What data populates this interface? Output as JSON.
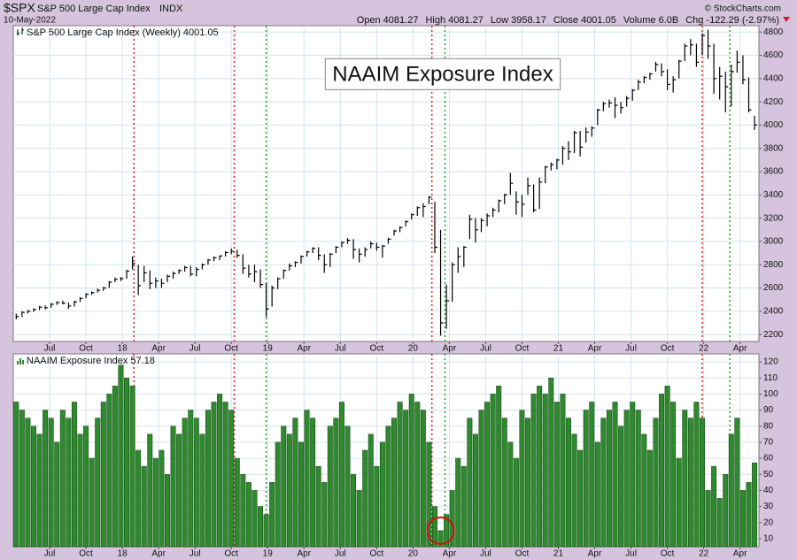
{
  "header": {
    "symbol": "$SPX",
    "name": "S&P 500 Large Cap Index",
    "exchange": "INDX",
    "date": "10-May-2022",
    "quote": [
      "Open 4081.27",
      "High 4081.27",
      "Low 3958.17",
      "Close 4001.05",
      "Volume 6.0B",
      "Chg -122.29 (-2.97%)"
    ],
    "credit": "© StockCharts.com"
  },
  "chart_data": [
    {
      "type": "ohlc",
      "title": "NAAIM Exposure Index",
      "legend": "S&P 500 Large Cap Index (Weekly) 4001.05",
      "color": "#000000",
      "x": [
        17.27,
        17.31,
        17.35,
        17.39,
        17.43,
        17.47,
        17.51,
        17.55,
        17.59,
        17.63,
        17.67,
        17.71,
        17.75,
        17.79,
        17.83,
        17.87,
        17.91,
        17.95,
        17.99,
        18.03,
        18.07,
        18.11,
        18.15,
        18.19,
        18.23,
        18.27,
        18.31,
        18.35,
        18.39,
        18.43,
        18.47,
        18.51,
        18.55,
        18.59,
        18.63,
        18.67,
        18.71,
        18.75,
        18.79,
        18.83,
        18.87,
        18.91,
        18.95,
        18.99,
        19.03,
        19.07,
        19.11,
        19.15,
        19.19,
        19.23,
        19.27,
        19.31,
        19.35,
        19.39,
        19.43,
        19.47,
        19.51,
        19.55,
        19.59,
        19.63,
        19.67,
        19.71,
        19.75,
        19.79,
        19.83,
        19.87,
        19.91,
        19.95,
        19.99,
        20.03,
        20.07,
        20.11,
        20.15,
        20.19,
        20.23,
        20.27,
        20.31,
        20.35,
        20.39,
        20.43,
        20.47,
        20.51,
        20.55,
        20.59,
        20.63,
        20.67,
        20.71,
        20.75,
        20.79,
        20.83,
        20.87,
        20.91,
        20.95,
        20.99,
        21.03,
        21.07,
        21.11,
        21.15,
        21.19,
        21.23,
        21.27,
        21.31,
        21.35,
        21.39,
        21.43,
        21.47,
        21.51,
        21.55,
        21.59,
        21.63,
        21.67,
        21.71,
        21.75,
        21.79,
        21.83,
        21.87,
        21.91,
        21.95,
        21.99,
        22.03,
        22.07,
        22.11,
        22.15,
        22.19,
        22.23,
        22.27,
        22.31,
        22.35
      ],
      "high": [
        2380,
        2400,
        2410,
        2425,
        2445,
        2450,
        2470,
        2485,
        2490,
        2475,
        2490,
        2520,
        2555,
        2570,
        2595,
        2610,
        2660,
        2690,
        2695,
        2755,
        2870,
        2800,
        2790,
        2750,
        2690,
        2680,
        2715,
        2740,
        2760,
        2790,
        2790,
        2780,
        2810,
        2850,
        2870,
        2880,
        2915,
        2940,
        2930,
        2890,
        2800,
        2800,
        2760,
        2640,
        2620,
        2690,
        2760,
        2810,
        2830,
        2880,
        2920,
        2950,
        2950,
        2890,
        2900,
        2960,
        3000,
        3030,
        3020,
        2940,
        2950,
        3000,
        2990,
        2970,
        3030,
        3100,
        3130,
        3180,
        3240,
        3300,
        3330,
        3390,
        3340,
        3100,
        2630,
        2820,
        2950,
        2960,
        3230,
        3200,
        3200,
        3240,
        3290,
        3360,
        3410,
        3590,
        3430,
        3400,
        3550,
        3490,
        3550,
        3650,
        3680,
        3710,
        3820,
        3860,
        3950,
        3950,
        3980,
        3990,
        4140,
        4200,
        4220,
        4240,
        4200,
        4250,
        4310,
        4390,
        4420,
        4450,
        4545,
        4530,
        4480,
        4420,
        4560,
        4700,
        4740,
        4700,
        4790,
        4820,
        4700,
        4500,
        4460,
        4520,
        4640,
        4600,
        4410,
        4081.27
      ],
      "low": [
        2330,
        2350,
        2380,
        2395,
        2410,
        2415,
        2430,
        2455,
        2460,
        2420,
        2440,
        2480,
        2510,
        2540,
        2560,
        2575,
        2600,
        2650,
        2660,
        2680,
        2760,
        2540,
        2650,
        2590,
        2600,
        2600,
        2650,
        2680,
        2720,
        2740,
        2700,
        2700,
        2760,
        2800,
        2830,
        2840,
        2870,
        2890,
        2860,
        2720,
        2690,
        2650,
        2600,
        2350,
        2440,
        2590,
        2680,
        2750,
        2780,
        2810,
        2870,
        2900,
        2840,
        2730,
        2780,
        2900,
        2950,
        2980,
        2850,
        2820,
        2870,
        2940,
        2920,
        2860,
        2980,
        3050,
        3080,
        3130,
        3190,
        3220,
        3210,
        3320,
        2900,
        2190,
        2250,
        2480,
        2730,
        2780,
        3020,
        2990,
        3080,
        3130,
        3210,
        3250,
        3320,
        3400,
        3230,
        3210,
        3400,
        3250,
        3280,
        3500,
        3610,
        3620,
        3660,
        3700,
        3760,
        3730,
        3850,
        3900,
        4000,
        4120,
        4150,
        4060,
        4100,
        4160,
        4210,
        4300,
        4360,
        4390,
        4460,
        4420,
        4300,
        4280,
        4400,
        4550,
        4600,
        4500,
        4600,
        4570,
        4270,
        4220,
        4110,
        4160,
        4450,
        4350,
        4110,
        3958.17
      ],
      "values": [
        2355,
        2390,
        2400,
        2415,
        2435,
        2430,
        2460,
        2475,
        2470,
        2445,
        2480,
        2510,
        2545,
        2560,
        2580,
        2600,
        2650,
        2675,
        2680,
        2745,
        2810,
        2620,
        2730,
        2640,
        2660,
        2640,
        2700,
        2725,
        2750,
        2775,
        2720,
        2760,
        2800,
        2840,
        2860,
        2875,
        2905,
        2915,
        2880,
        2770,
        2720,
        2740,
        2630,
        2420,
        2600,
        2680,
        2750,
        2790,
        2820,
        2870,
        2910,
        2940,
        2880,
        2800,
        2890,
        2950,
        2990,
        3010,
        2930,
        2890,
        2930,
        2980,
        2950,
        2960,
        3020,
        3090,
        3120,
        3170,
        3230,
        3290,
        3300,
        3380,
        2950,
        2300,
        2490,
        2800,
        2870,
        2950,
        3190,
        3100,
        3180,
        3220,
        3270,
        3350,
        3400,
        3500,
        3340,
        3320,
        3480,
        3270,
        3510,
        3640,
        3660,
        3700,
        3800,
        3770,
        3935,
        3810,
        3940,
        3975,
        4130,
        4185,
        4190,
        4170,
        4150,
        4230,
        4300,
        4370,
        4410,
        4440,
        4520,
        4460,
        4350,
        4390,
        4550,
        4680,
        4690,
        4540,
        4770,
        4680,
        4400,
        4420,
        4330,
        4460,
        4540,
        4390,
        4130,
        4001.05
      ],
      "xlim": [
        17.25,
        22.38
      ],
      "ylim": [
        2140,
        4855
      ],
      "yticks": [
        2200,
        2400,
        2600,
        2800,
        3000,
        3200,
        3400,
        3600,
        3800,
        4000,
        4200,
        4400,
        4600,
        4800
      ],
      "xticks": [
        {
          "value": 17.5,
          "label": "Jul"
        },
        {
          "value": 17.75,
          "label": "Oct"
        },
        18,
        {
          "value": 18.25,
          "label": "Apr"
        },
        {
          "value": 18.5,
          "label": "Jul"
        },
        {
          "value": 18.75,
          "label": "Oct"
        },
        19,
        {
          "value": 19.25,
          "label": "Apr"
        },
        {
          "value": 19.5,
          "label": "Jul"
        },
        {
          "value": 19.75,
          "label": "Oct"
        },
        20,
        {
          "value": 20.25,
          "label": "Apr"
        },
        {
          "value": 20.5,
          "label": "Jul"
        },
        {
          "value": 20.75,
          "label": "Oct"
        },
        21,
        {
          "value": 21.25,
          "label": "Apr"
        },
        {
          "value": 21.5,
          "label": "Jul"
        },
        {
          "value": 21.75,
          "label": "Oct"
        },
        22,
        {
          "value": 22.25,
          "label": "Apr"
        }
      ],
      "grid": true,
      "vlines": [
        {
          "x": 18.08,
          "color": "#e02020"
        },
        {
          "x": 18.77,
          "color": "#e02020"
        },
        {
          "x": 20.13,
          "color": "#e02020"
        },
        {
          "x": 21.99,
          "color": "#e02020"
        },
        {
          "x": 18.99,
          "color": "#2a9a2a"
        },
        {
          "x": 20.22,
          "color": "#2a9a2a"
        },
        {
          "x": 22.18,
          "color": "#2a9a2a"
        }
      ]
    },
    {
      "type": "bar",
      "legend": "NAAIM Exposure Index 57.18",
      "color": "#2f8a2f",
      "x": [
        17.27,
        17.31,
        17.35,
        17.39,
        17.43,
        17.47,
        17.51,
        17.55,
        17.59,
        17.63,
        17.67,
        17.71,
        17.75,
        17.79,
        17.83,
        17.87,
        17.91,
        17.95,
        17.99,
        18.03,
        18.07,
        18.11,
        18.15,
        18.19,
        18.23,
        18.27,
        18.31,
        18.35,
        18.39,
        18.43,
        18.47,
        18.51,
        18.55,
        18.59,
        18.63,
        18.67,
        18.71,
        18.75,
        18.79,
        18.83,
        18.87,
        18.91,
        18.95,
        18.99,
        19.03,
        19.07,
        19.11,
        19.15,
        19.19,
        19.23,
        19.27,
        19.31,
        19.35,
        19.39,
        19.43,
        19.47,
        19.51,
        19.55,
        19.59,
        19.63,
        19.67,
        19.71,
        19.75,
        19.79,
        19.83,
        19.87,
        19.91,
        19.95,
        19.99,
        20.03,
        20.07,
        20.11,
        20.15,
        20.19,
        20.23,
        20.27,
        20.31,
        20.35,
        20.39,
        20.43,
        20.47,
        20.51,
        20.55,
        20.59,
        20.63,
        20.67,
        20.71,
        20.75,
        20.79,
        20.83,
        20.87,
        20.91,
        20.95,
        20.99,
        21.03,
        21.07,
        21.11,
        21.15,
        21.19,
        21.23,
        21.27,
        21.31,
        21.35,
        21.39,
        21.43,
        21.47,
        21.51,
        21.55,
        21.59,
        21.63,
        21.67,
        21.71,
        21.75,
        21.79,
        21.83,
        21.87,
        21.91,
        21.95,
        21.99,
        22.03,
        22.07,
        22.11,
        22.15,
        22.19,
        22.23,
        22.27,
        22.31,
        22.35
      ],
      "values": [
        95,
        90,
        85,
        80,
        75,
        90,
        85,
        70,
        90,
        85,
        95,
        75,
        80,
        60,
        85,
        95,
        100,
        105,
        118,
        110,
        105,
        65,
        55,
        75,
        60,
        65,
        50,
        80,
        75,
        85,
        90,
        85,
        75,
        90,
        95,
        100,
        95,
        90,
        60,
        50,
        45,
        40,
        30,
        25,
        45,
        70,
        80,
        75,
        85,
        70,
        90,
        85,
        55,
        45,
        80,
        85,
        95,
        80,
        50,
        40,
        65,
        75,
        55,
        70,
        80,
        85,
        95,
        90,
        100,
        95,
        90,
        70,
        30,
        15,
        25,
        40,
        60,
        55,
        85,
        75,
        90,
        95,
        100,
        105,
        85,
        70,
        60,
        90,
        85,
        100,
        105,
        100,
        110,
        95,
        100,
        85,
        75,
        65,
        90,
        95,
        70,
        85,
        90,
        95,
        80,
        90,
        95,
        90,
        75,
        65,
        85,
        100,
        105,
        95,
        60,
        90,
        85,
        95,
        85,
        40,
        55,
        35,
        50,
        75,
        85,
        40,
        45,
        57.18
      ],
      "xlim": [
        17.25,
        22.38
      ],
      "ylim": [
        5,
        125
      ],
      "yticks": [
        10,
        20,
        30,
        40,
        50,
        60,
        70,
        80,
        90,
        100,
        110,
        120
      ],
      "xticks": [
        {
          "value": 17.5,
          "label": "Jul"
        },
        {
          "value": 17.75,
          "label": "Oct"
        },
        18,
        {
          "value": 18.25,
          "label": "Apr"
        },
        {
          "value": 18.5,
          "label": "Jul"
        },
        {
          "value": 18.75,
          "label": "Oct"
        },
        19,
        {
          "value": 19.25,
          "label": "Apr"
        },
        {
          "value": 19.5,
          "label": "Jul"
        },
        {
          "value": 19.75,
          "label": "Oct"
        },
        20,
        {
          "value": 20.25,
          "label": "Apr"
        },
        {
          "value": 20.5,
          "label": "Jul"
        },
        {
          "value": 20.75,
          "label": "Oct"
        },
        21,
        {
          "value": 21.25,
          "label": "Apr"
        },
        {
          "value": 21.5,
          "label": "Jul"
        },
        {
          "value": 21.75,
          "label": "Oct"
        },
        22,
        {
          "value": 22.25,
          "label": "Apr"
        }
      ],
      "grid": true,
      "vlines": [
        {
          "x": 18.08,
          "color": "#e02020"
        },
        {
          "x": 18.77,
          "color": "#e02020"
        },
        {
          "x": 20.13,
          "color": "#e02020"
        },
        {
          "x": 21.99,
          "color": "#e02020"
        },
        {
          "x": 18.99,
          "color": "#2a9a2a"
        },
        {
          "x": 20.22,
          "color": "#2a9a2a"
        },
        {
          "x": 22.18,
          "color": "#2a9a2a"
        }
      ]
    }
  ]
}
